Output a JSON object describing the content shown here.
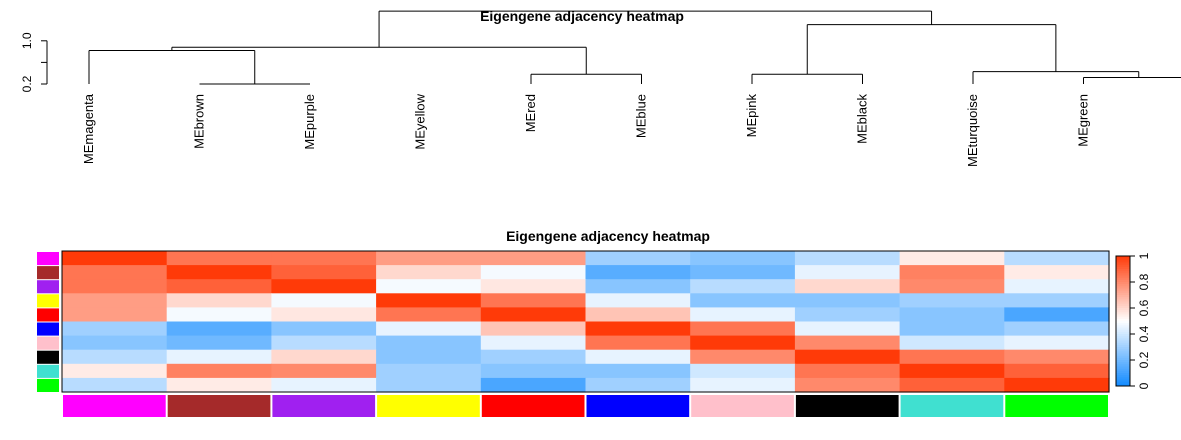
{
  "chart_data": [
    {
      "type": "dendrogram",
      "title": "Eigengene adjacency heatmap",
      "leaves": [
        "MEmagenta",
        "MEbrown",
        "MEpurple",
        "MEyellow",
        "MEred",
        "MEblue",
        "MEpink",
        "MEblack",
        "MEturquoise",
        "MEgreen"
      ],
      "y_ticks": [
        "0.2",
        "0.6",
        "1.0"
      ],
      "y_tick_values": [
        0.2,
        0.6,
        1.0
      ],
      "ylim": [
        0.2,
        1.2
      ],
      "merges": [
        {
          "a": 1,
          "b": 2,
          "height": 0.2
        },
        {
          "a": 9,
          "b": 10,
          "height": 0.32
        },
        {
          "a": 4,
          "b": 5,
          "height": 0.38
        },
        {
          "a": 8,
          "b": "c2",
          "height": 0.43
        },
        {
          "a": 6,
          "b": 7,
          "height": 0.38
        },
        {
          "a": 0,
          "b": "c1",
          "height": 0.82
        },
        {
          "a": "c6",
          "b": "c3",
          "height": 0.88
        },
        {
          "a": "c5",
          "b": "c4",
          "height": 1.3
        },
        {
          "a": "c7",
          "b": "c8",
          "height": 1.55
        }
      ]
    },
    {
      "type": "heatmap",
      "title": "Eigengene adjacency heatmap",
      "module_colors": [
        "#FF00FF",
        "#A52A2A",
        "#A020F0",
        "#FFFF00",
        "#FF0000",
        "#0000FF",
        "#FFC0CB",
        "#000000",
        "#40E0D0",
        "#00FF00"
      ],
      "colorbar_ticks": [
        "0",
        "0.2",
        "0.4",
        "0.6",
        "0.8",
        "1"
      ],
      "colorbar_values": [
        0,
        0.2,
        0.4,
        0.6,
        0.8,
        1
      ],
      "zlim": [
        0,
        1
      ],
      "values": [
        [
          1.0,
          0.85,
          0.85,
          0.75,
          0.75,
          0.3,
          0.25,
          0.35,
          0.55,
          0.35
        ],
        [
          0.85,
          1.0,
          0.9,
          0.6,
          0.48,
          0.15,
          0.2,
          0.45,
          0.82,
          0.55
        ],
        [
          0.85,
          0.9,
          1.0,
          0.48,
          0.56,
          0.25,
          0.35,
          0.6,
          0.8,
          0.45
        ],
        [
          0.75,
          0.6,
          0.48,
          1.0,
          0.85,
          0.45,
          0.25,
          0.25,
          0.3,
          0.3
        ],
        [
          0.75,
          0.48,
          0.56,
          0.85,
          1.0,
          0.65,
          0.45,
          0.3,
          0.25,
          0.12
        ],
        [
          0.3,
          0.15,
          0.25,
          0.45,
          0.65,
          1.0,
          0.85,
          0.45,
          0.25,
          0.3
        ],
        [
          0.25,
          0.2,
          0.35,
          0.25,
          0.45,
          0.85,
          1.0,
          0.8,
          0.4,
          0.45
        ],
        [
          0.35,
          0.45,
          0.6,
          0.25,
          0.3,
          0.45,
          0.8,
          1.0,
          0.85,
          0.8
        ],
        [
          0.55,
          0.82,
          0.8,
          0.3,
          0.25,
          0.25,
          0.4,
          0.85,
          1.0,
          0.9
        ],
        [
          0.35,
          0.55,
          0.45,
          0.3,
          0.12,
          0.3,
          0.45,
          0.8,
          0.9,
          1.0
        ]
      ]
    }
  ]
}
